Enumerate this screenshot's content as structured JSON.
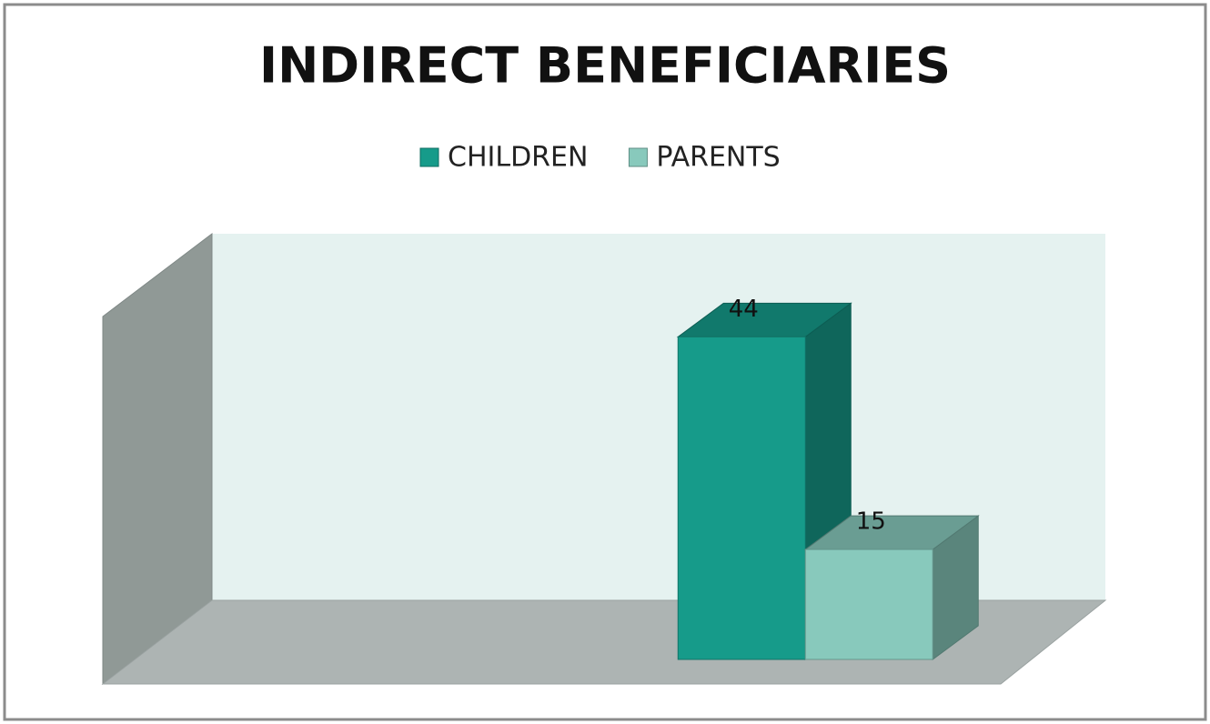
{
  "chart_data": {
    "type": "bar3d",
    "title": "INDIRECT BENEFICIARIES",
    "categories": [
      null,
      null
    ],
    "series": [
      {
        "name": "CHILDREN",
        "color": "#169b8a",
        "values": [
          null,
          44
        ]
      },
      {
        "name": "PARENTS",
        "color": "#88c9bc",
        "values": [
          null,
          15
        ]
      }
    ],
    "ylim": [
      0,
      50
    ]
  }
}
